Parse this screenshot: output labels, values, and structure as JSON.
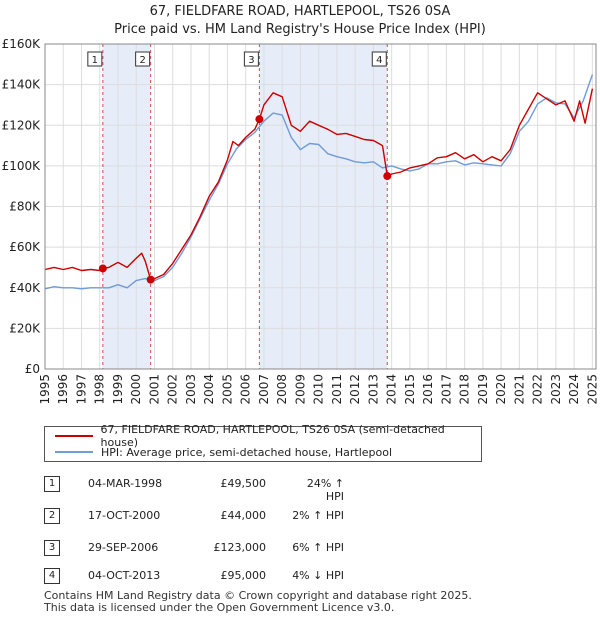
{
  "chart_data": {
    "type": "line",
    "title": "67, FIELDFARE ROAD, HARTLEPOOL, TS26 0SA",
    "subtitle": "Price paid vs. HM Land Registry's House Price Index (HPI)",
    "xlim": [
      1995,
      2025.2
    ],
    "ylim": [
      0,
      160000
    ],
    "x_ticks": [
      "1995",
      "1996",
      "1997",
      "1998",
      "1999",
      "2000",
      "2001",
      "2002",
      "2003",
      "2004",
      "2005",
      "2006",
      "2007",
      "2008",
      "2009",
      "2010",
      "2011",
      "2012",
      "2013",
      "2014",
      "2015",
      "2016",
      "2017",
      "2018",
      "2019",
      "2020",
      "2021",
      "2022",
      "2023",
      "2024",
      "2025"
    ],
    "y_ticks": [
      "£0",
      "£20K",
      "£40K",
      "£60K",
      "£80K",
      "£100K",
      "£120K",
      "£140K",
      "£160K"
    ],
    "grid": true,
    "shaded_ranges": [
      [
        1998.17,
        2000.79
      ],
      [
        2006.75,
        2013.76
      ]
    ],
    "series": [
      {
        "name": "67, FIELDFARE ROAD, HARTLEPOOL, TS26 0SA (semi-detached house)",
        "color": "#cc0000",
        "x": [
          1995.0,
          1995.5,
          1996.0,
          1996.5,
          1997.0,
          1997.5,
          1998.0,
          1998.17,
          1998.5,
          1999.0,
          1999.5,
          2000.0,
          2000.3,
          2000.5,
          2000.79,
          2001.0,
          2001.5,
          2002.0,
          2002.5,
          2003.0,
          2003.5,
          2004.0,
          2004.5,
          2005.0,
          2005.3,
          2005.6,
          2006.0,
          2006.5,
          2006.75,
          2007.0,
          2007.5,
          2008.0,
          2008.5,
          2009.0,
          2009.5,
          2010.0,
          2010.5,
          2011.0,
          2011.5,
          2012.0,
          2012.5,
          2013.0,
          2013.5,
          2013.76,
          2014.0,
          2014.5,
          2015.0,
          2015.5,
          2016.0,
          2016.5,
          2017.0,
          2017.5,
          2018.0,
          2018.5,
          2019.0,
          2019.5,
          2020.0,
          2020.5,
          2021.0,
          2021.5,
          2022.0,
          2022.5,
          2023.0,
          2023.5,
          2024.0,
          2024.3,
          2024.6,
          2025.0
        ],
        "y": [
          49000,
          50000,
          49000,
          50000,
          48500,
          49000,
          48500,
          49500,
          50000,
          52500,
          50000,
          54500,
          57000,
          53000,
          44000,
          44500,
          46500,
          52000,
          59000,
          66000,
          75000,
          85000,
          92000,
          103000,
          112000,
          110000,
          114000,
          118000,
          123000,
          130000,
          136000,
          134000,
          120000,
          117000,
          122000,
          120000,
          118000,
          115500,
          116000,
          114500,
          113000,
          112500,
          110000,
          95000,
          96000,
          97000,
          99000,
          100000,
          101000,
          104000,
          104500,
          106500,
          103500,
          105500,
          102000,
          104500,
          102500,
          108000,
          120000,
          128000,
          136000,
          133000,
          130000,
          132000,
          122000,
          132000,
          121000,
          138000
        ]
      },
      {
        "name": "HPI: Average price, semi-detached house, Hartlepool",
        "color": "#6f9bd6",
        "x": [
          1995.0,
          1995.5,
          1996.0,
          1996.5,
          1997.0,
          1997.5,
          1998.0,
          1998.5,
          1999.0,
          1999.5,
          2000.0,
          2000.5,
          2001.0,
          2001.5,
          2002.0,
          2002.5,
          2003.0,
          2003.5,
          2004.0,
          2004.5,
          2005.0,
          2005.5,
          2006.0,
          2006.5,
          2007.0,
          2007.5,
          2008.0,
          2008.5,
          2009.0,
          2009.5,
          2010.0,
          2010.5,
          2011.0,
          2011.5,
          2012.0,
          2012.5,
          2013.0,
          2013.5,
          2014.0,
          2014.5,
          2015.0,
          2015.5,
          2016.0,
          2016.5,
          2017.0,
          2017.5,
          2018.0,
          2018.5,
          2019.0,
          2019.5,
          2020.0,
          2020.5,
          2021.0,
          2021.5,
          2022.0,
          2022.5,
          2023.0,
          2023.5,
          2024.0,
          2024.5,
          2025.0
        ],
        "y": [
          39500,
          40500,
          40000,
          40000,
          39500,
          40000,
          40000,
          40000,
          41500,
          40000,
          43500,
          44500,
          43500,
          45500,
          50000,
          57000,
          65000,
          74000,
          83000,
          91000,
          101000,
          108500,
          113000,
          116500,
          122000,
          126000,
          125000,
          114000,
          108000,
          111000,
          110500,
          106000,
          104500,
          103500,
          102000,
          101500,
          102000,
          99000,
          100000,
          98500,
          97500,
          98500,
          101000,
          101000,
          102000,
          102500,
          100500,
          101500,
          101000,
          100500,
          100000,
          106000,
          117000,
          122000,
          130500,
          133500,
          131000,
          130500,
          123500,
          132000,
          145000
        ]
      }
    ],
    "sales": [
      {
        "label": "1",
        "x": 1998.17,
        "y": 49500
      },
      {
        "label": "2",
        "x": 2000.79,
        "y": 44000
      },
      {
        "label": "3",
        "x": 2006.75,
        "y": 123000
      },
      {
        "label": "4",
        "x": 2013.76,
        "y": 95000
      }
    ]
  },
  "legend": {
    "property": "67, FIELDFARE ROAD, HARTLEPOOL, TS26 0SA (semi-detached house)",
    "hpi": "HPI: Average price, semi-detached house, Hartlepool"
  },
  "transactions": [
    {
      "num": "1",
      "date": "04-MAR-1998",
      "price": "£49,500",
      "hpi": "24% ↑ HPI"
    },
    {
      "num": "2",
      "date": "17-OCT-2000",
      "price": "£44,000",
      "hpi": "2% ↑ HPI"
    },
    {
      "num": "3",
      "date": "29-SEP-2006",
      "price": "£123,000",
      "hpi": "6% ↑ HPI"
    },
    {
      "num": "4",
      "date": "04-OCT-2013",
      "price": "£95,000",
      "hpi": "4% ↓ HPI"
    }
  ],
  "footer": {
    "line1": "Contains HM Land Registry data © Crown copyright and database right 2025.",
    "line2": "This data is licensed under the Open Government Licence v3.0."
  }
}
